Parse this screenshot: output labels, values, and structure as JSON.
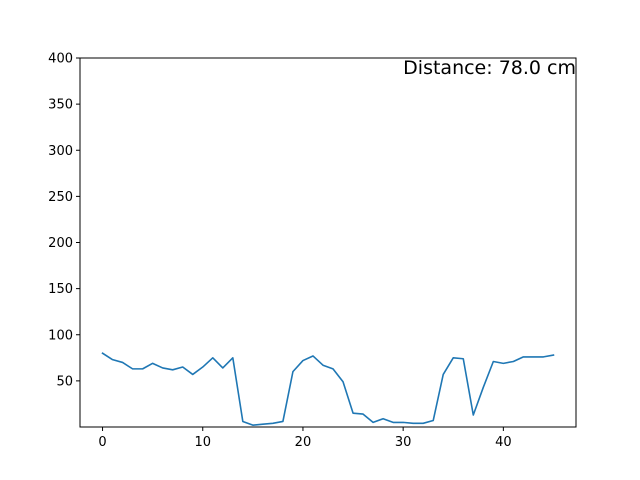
{
  "chart_data": {
    "type": "line",
    "title": "",
    "xlabel": "",
    "ylabel": "",
    "xlim": [
      -2.25,
      47.25
    ],
    "ylim": [
      0,
      400
    ],
    "x_ticks": [
      0,
      10,
      20,
      30,
      40
    ],
    "y_ticks": [
      50,
      100,
      150,
      200,
      250,
      300,
      350,
      400
    ],
    "grid": false,
    "annotation": "Distance: 78.0 cm",
    "series": [
      {
        "color": "#1f77b4",
        "x": [
          0,
          1,
          2,
          3,
          4,
          5,
          6,
          7,
          8,
          9,
          10,
          11,
          12,
          13,
          14,
          15,
          16,
          17,
          18,
          19,
          20,
          21,
          22,
          23,
          24,
          25,
          26,
          27,
          28,
          29,
          30,
          31,
          32,
          33,
          34,
          35,
          36,
          37,
          38,
          39,
          40,
          41,
          42,
          43,
          44,
          45
        ],
        "y": [
          80,
          73,
          70,
          63,
          63,
          69,
          64,
          62,
          65,
          57,
          65,
          75,
          64,
          75,
          6,
          2,
          3,
          4,
          6,
          60,
          72,
          77,
          67,
          63,
          49,
          15,
          14,
          5,
          9,
          5,
          5,
          4,
          4,
          7,
          57,
          75,
          74,
          13,
          43,
          71,
          69,
          71,
          76,
          76,
          76,
          78
        ]
      }
    ]
  }
}
